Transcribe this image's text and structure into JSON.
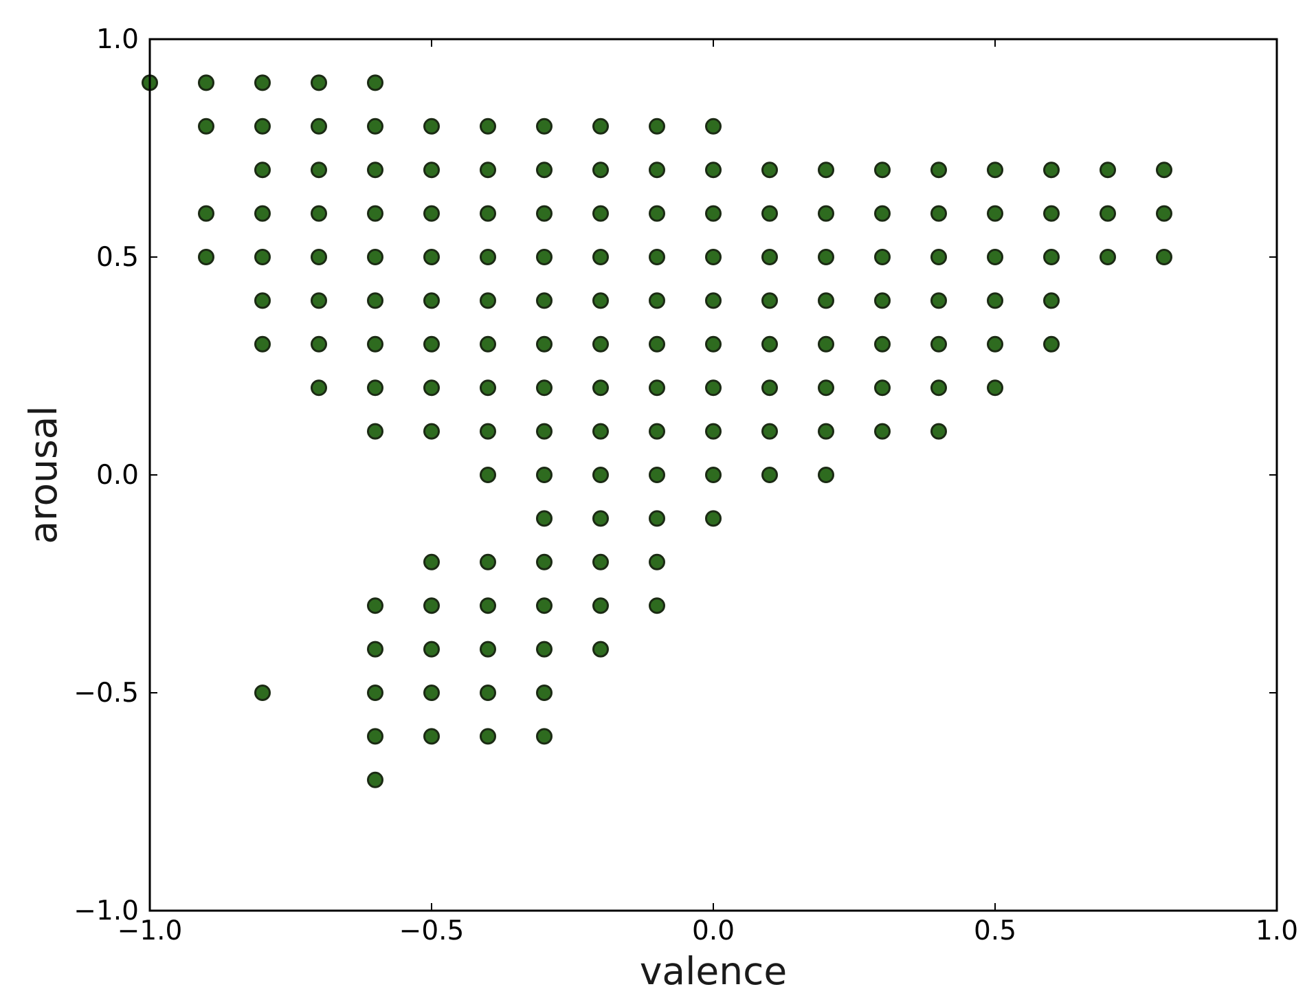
{
  "chart_data": {
    "type": "scatter",
    "title": "",
    "xlabel": "valence",
    "ylabel": "arousal",
    "xlim": [
      -1.0,
      1.0
    ],
    "ylim": [
      -1.0,
      1.0
    ],
    "x_ticks": [
      -1.0,
      -0.5,
      0.0,
      0.5,
      1.0
    ],
    "y_ticks": [
      -1.0,
      -0.5,
      0.0,
      0.5,
      1.0
    ],
    "x_tick_labels": [
      "−1.0",
      "−0.5",
      "0.0",
      "0.5",
      "1.0"
    ],
    "y_tick_labels": [
      "−1.0",
      "−0.5",
      "0.0",
      "0.5",
      "1.0"
    ],
    "grid": false,
    "legend": null,
    "marker_color": "#2e6b1f",
    "marker_edge_color": "#1b2a14",
    "series": [
      {
        "points": [
          [
            -1.0,
            0.9
          ],
          [
            -0.9,
            0.9
          ],
          [
            -0.9,
            0.8
          ],
          [
            -0.9,
            0.6
          ],
          [
            -0.9,
            0.5
          ],
          [
            -0.8,
            0.9
          ],
          [
            -0.8,
            0.8
          ],
          [
            -0.8,
            0.7
          ],
          [
            -0.8,
            0.6
          ],
          [
            -0.8,
            0.5
          ],
          [
            -0.8,
            0.4
          ],
          [
            -0.8,
            0.3
          ],
          [
            -0.8,
            -0.5
          ],
          [
            -0.7,
            0.9
          ],
          [
            -0.7,
            0.8
          ],
          [
            -0.7,
            0.7
          ],
          [
            -0.7,
            0.6
          ],
          [
            -0.7,
            0.5
          ],
          [
            -0.7,
            0.4
          ],
          [
            -0.7,
            0.3
          ],
          [
            -0.7,
            0.2
          ],
          [
            -0.6,
            0.9
          ],
          [
            -0.6,
            0.8
          ],
          [
            -0.6,
            0.7
          ],
          [
            -0.6,
            0.6
          ],
          [
            -0.6,
            0.5
          ],
          [
            -0.6,
            0.4
          ],
          [
            -0.6,
            0.3
          ],
          [
            -0.6,
            0.2
          ],
          [
            -0.6,
            0.1
          ],
          [
            -0.6,
            -0.3
          ],
          [
            -0.6,
            -0.4
          ],
          [
            -0.6,
            -0.5
          ],
          [
            -0.6,
            -0.6
          ],
          [
            -0.6,
            -0.7
          ],
          [
            -0.5,
            0.8
          ],
          [
            -0.5,
            0.7
          ],
          [
            -0.5,
            0.6
          ],
          [
            -0.5,
            0.5
          ],
          [
            -0.5,
            0.4
          ],
          [
            -0.5,
            0.3
          ],
          [
            -0.5,
            0.2
          ],
          [
            -0.5,
            0.1
          ],
          [
            -0.5,
            -0.2
          ],
          [
            -0.5,
            -0.3
          ],
          [
            -0.5,
            -0.4
          ],
          [
            -0.5,
            -0.5
          ],
          [
            -0.5,
            -0.6
          ],
          [
            -0.4,
            0.8
          ],
          [
            -0.4,
            0.7
          ],
          [
            -0.4,
            0.6
          ],
          [
            -0.4,
            0.5
          ],
          [
            -0.4,
            0.4
          ],
          [
            -0.4,
            0.3
          ],
          [
            -0.4,
            0.2
          ],
          [
            -0.4,
            0.1
          ],
          [
            -0.4,
            0.0
          ],
          [
            -0.4,
            -0.2
          ],
          [
            -0.4,
            -0.3
          ],
          [
            -0.4,
            -0.4
          ],
          [
            -0.4,
            -0.5
          ],
          [
            -0.4,
            -0.6
          ],
          [
            -0.3,
            0.8
          ],
          [
            -0.3,
            0.7
          ],
          [
            -0.3,
            0.6
          ],
          [
            -0.3,
            0.5
          ],
          [
            -0.3,
            0.4
          ],
          [
            -0.3,
            0.3
          ],
          [
            -0.3,
            0.2
          ],
          [
            -0.3,
            0.1
          ],
          [
            -0.3,
            0.0
          ],
          [
            -0.3,
            -0.1
          ],
          [
            -0.3,
            -0.2
          ],
          [
            -0.3,
            -0.3
          ],
          [
            -0.3,
            -0.4
          ],
          [
            -0.3,
            -0.5
          ],
          [
            -0.3,
            -0.6
          ],
          [
            -0.2,
            0.8
          ],
          [
            -0.2,
            0.7
          ],
          [
            -0.2,
            0.6
          ],
          [
            -0.2,
            0.5
          ],
          [
            -0.2,
            0.4
          ],
          [
            -0.2,
            0.3
          ],
          [
            -0.2,
            0.2
          ],
          [
            -0.2,
            0.1
          ],
          [
            -0.2,
            0.0
          ],
          [
            -0.2,
            -0.1
          ],
          [
            -0.2,
            -0.2
          ],
          [
            -0.2,
            -0.3
          ],
          [
            -0.2,
            -0.4
          ],
          [
            -0.1,
            0.8
          ],
          [
            -0.1,
            0.7
          ],
          [
            -0.1,
            0.6
          ],
          [
            -0.1,
            0.5
          ],
          [
            -0.1,
            0.4
          ],
          [
            -0.1,
            0.3
          ],
          [
            -0.1,
            0.2
          ],
          [
            -0.1,
            0.1
          ],
          [
            -0.1,
            0.0
          ],
          [
            -0.1,
            -0.1
          ],
          [
            -0.1,
            -0.2
          ],
          [
            -0.1,
            -0.3
          ],
          [
            0.0,
            0.8
          ],
          [
            0.0,
            0.7
          ],
          [
            0.0,
            0.6
          ],
          [
            0.0,
            0.5
          ],
          [
            0.0,
            0.4
          ],
          [
            0.0,
            0.3
          ],
          [
            0.0,
            0.2
          ],
          [
            0.0,
            0.1
          ],
          [
            0.0,
            0.0
          ],
          [
            0.0,
            -0.1
          ],
          [
            0.1,
            0.7
          ],
          [
            0.1,
            0.6
          ],
          [
            0.1,
            0.5
          ],
          [
            0.1,
            0.4
          ],
          [
            0.1,
            0.3
          ],
          [
            0.1,
            0.2
          ],
          [
            0.1,
            0.1
          ],
          [
            0.1,
            0.0
          ],
          [
            0.2,
            0.7
          ],
          [
            0.2,
            0.6
          ],
          [
            0.2,
            0.5
          ],
          [
            0.2,
            0.4
          ],
          [
            0.2,
            0.3
          ],
          [
            0.2,
            0.2
          ],
          [
            0.2,
            0.1
          ],
          [
            0.2,
            0.0
          ],
          [
            0.3,
            0.7
          ],
          [
            0.3,
            0.6
          ],
          [
            0.3,
            0.5
          ],
          [
            0.3,
            0.4
          ],
          [
            0.3,
            0.3
          ],
          [
            0.3,
            0.2
          ],
          [
            0.3,
            0.1
          ],
          [
            0.4,
            0.7
          ],
          [
            0.4,
            0.6
          ],
          [
            0.4,
            0.5
          ],
          [
            0.4,
            0.4
          ],
          [
            0.4,
            0.3
          ],
          [
            0.4,
            0.2
          ],
          [
            0.4,
            0.1
          ],
          [
            0.5,
            0.7
          ],
          [
            0.5,
            0.6
          ],
          [
            0.5,
            0.5
          ],
          [
            0.5,
            0.4
          ],
          [
            0.5,
            0.3
          ],
          [
            0.5,
            0.2
          ],
          [
            0.6,
            0.7
          ],
          [
            0.6,
            0.6
          ],
          [
            0.6,
            0.5
          ],
          [
            0.6,
            0.4
          ],
          [
            0.6,
            0.3
          ],
          [
            0.7,
            0.7
          ],
          [
            0.7,
            0.6
          ],
          [
            0.7,
            0.5
          ],
          [
            0.8,
            0.7
          ],
          [
            0.8,
            0.6
          ],
          [
            0.8,
            0.5
          ]
        ]
      }
    ]
  }
}
